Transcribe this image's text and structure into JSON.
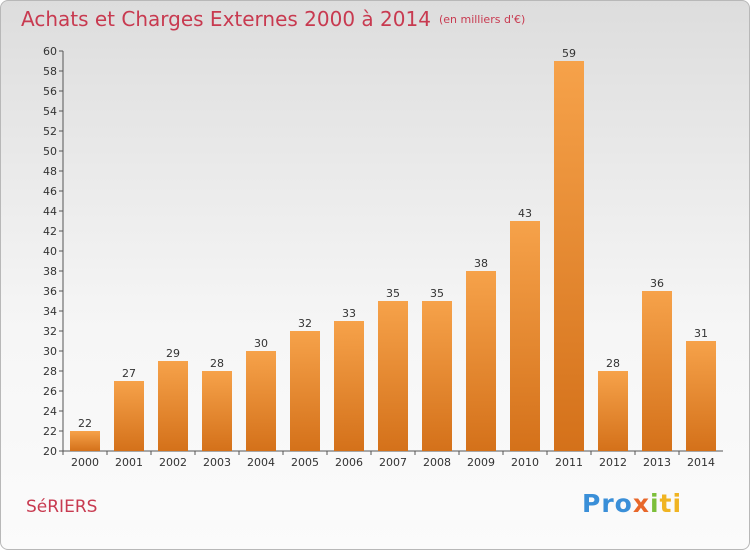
{
  "title": "Achats et Charges Externes 2000 à 2014",
  "unit": "(en milliers d'€)",
  "commune": "SéRIERS",
  "logo": {
    "p1": "Pro",
    "p2": "x",
    "p3": "i",
    "p4": "ti"
  },
  "colors": {
    "bar_light": "#f6a24a",
    "bar_dark": "#d4711a",
    "title": "#c83a50"
  },
  "chart_data": {
    "type": "bar",
    "title": "Achats et Charges Externes 2000 à 2014",
    "subtitle": "(en milliers d'€)",
    "categories": [
      "2000",
      "2001",
      "2002",
      "2003",
      "2004",
      "2005",
      "2006",
      "2007",
      "2008",
      "2009",
      "2010",
      "2011",
      "2012",
      "2013",
      "2014"
    ],
    "values": [
      22,
      27,
      29,
      28,
      30,
      32,
      33,
      35,
      35,
      38,
      43,
      59,
      28,
      36,
      31
    ],
    "ylim": [
      20,
      60
    ],
    "ytick_step": 2,
    "grid": false,
    "legend": "none"
  }
}
